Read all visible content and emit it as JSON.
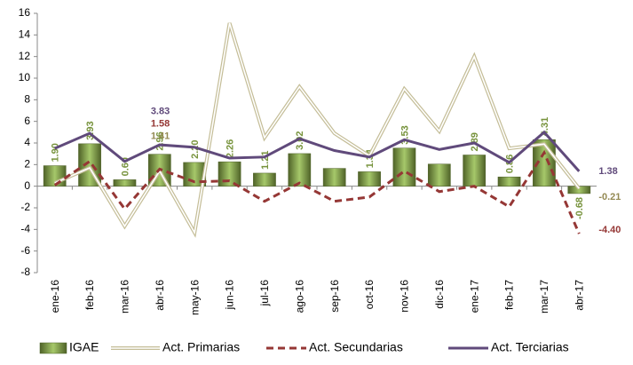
{
  "chart_data": {
    "type": "bar-line",
    "categories": [
      "ene-16",
      "feb-16",
      "mar-16",
      "abr-16",
      "may-16",
      "jun-16",
      "jul-16",
      "ago-16",
      "sep-16",
      "oct-16",
      "nov-16",
      "dic-16",
      "ene-17",
      "feb-17",
      "mar-17",
      "abr-17"
    ],
    "series": [
      {
        "name": "IGAE",
        "type": "bar",
        "color": "#77933c",
        "values": [
          1.9,
          3.93,
          0.6,
          2.96,
          2.2,
          2.26,
          1.21,
          3.02,
          1.65,
          1.34,
          3.53,
          2.05,
          2.89,
          0.86,
          4.31,
          -0.68
        ],
        "value_labels": [
          "1.90",
          "3.93",
          "0.60",
          "2.96",
          "2.20",
          "2.26",
          "1.21",
          "3.02",
          null,
          "1.34",
          "3.53",
          null,
          "2.89",
          "0.86",
          "4.31",
          "-0.68"
        ]
      },
      {
        "name": "Act. Primarias",
        "type": "line",
        "style": "double",
        "color": "#c4bd97",
        "values": [
          0.3,
          1.7,
          -3.7,
          1.41,
          -4.3,
          15.1,
          4.5,
          9.2,
          4.9,
          2.8,
          9.0,
          5.1,
          12.0,
          3.5,
          3.9,
          -0.21
        ],
        "value_labels": [
          null,
          null,
          null,
          "1.41",
          null,
          null,
          null,
          null,
          null,
          null,
          null,
          null,
          null,
          null,
          null,
          "-0.21"
        ]
      },
      {
        "name": "Act. Secundarias",
        "type": "line",
        "style": "dashed",
        "color": "#953735",
        "values": [
          0.1,
          2.3,
          -2.1,
          1.58,
          0.4,
          0.5,
          -1.4,
          0.3,
          -1.4,
          -1.0,
          1.4,
          -0.5,
          0.0,
          -1.9,
          3.1,
          -4.4
        ],
        "value_labels": [
          null,
          null,
          null,
          "1.58",
          null,
          null,
          null,
          null,
          null,
          null,
          null,
          null,
          null,
          null,
          null,
          "-4.40"
        ]
      },
      {
        "name": "Act. Terciarias",
        "type": "line",
        "style": "solid",
        "color": "#604a7b",
        "values": [
          3.5,
          4.9,
          2.3,
          3.83,
          3.6,
          2.6,
          2.7,
          4.4,
          3.3,
          2.7,
          4.3,
          3.4,
          4.0,
          2.2,
          5.0,
          1.38
        ],
        "value_labels": [
          null,
          null,
          null,
          "3.83",
          null,
          null,
          null,
          null,
          null,
          null,
          null,
          null,
          null,
          null,
          null,
          "1.38"
        ]
      }
    ],
    "ylim": [
      -8,
      16
    ],
    "yticks": [
      -8,
      -6,
      -4,
      -2,
      0,
      2,
      4,
      6,
      8,
      10,
      12,
      14,
      16
    ],
    "legend": "bottom"
  }
}
